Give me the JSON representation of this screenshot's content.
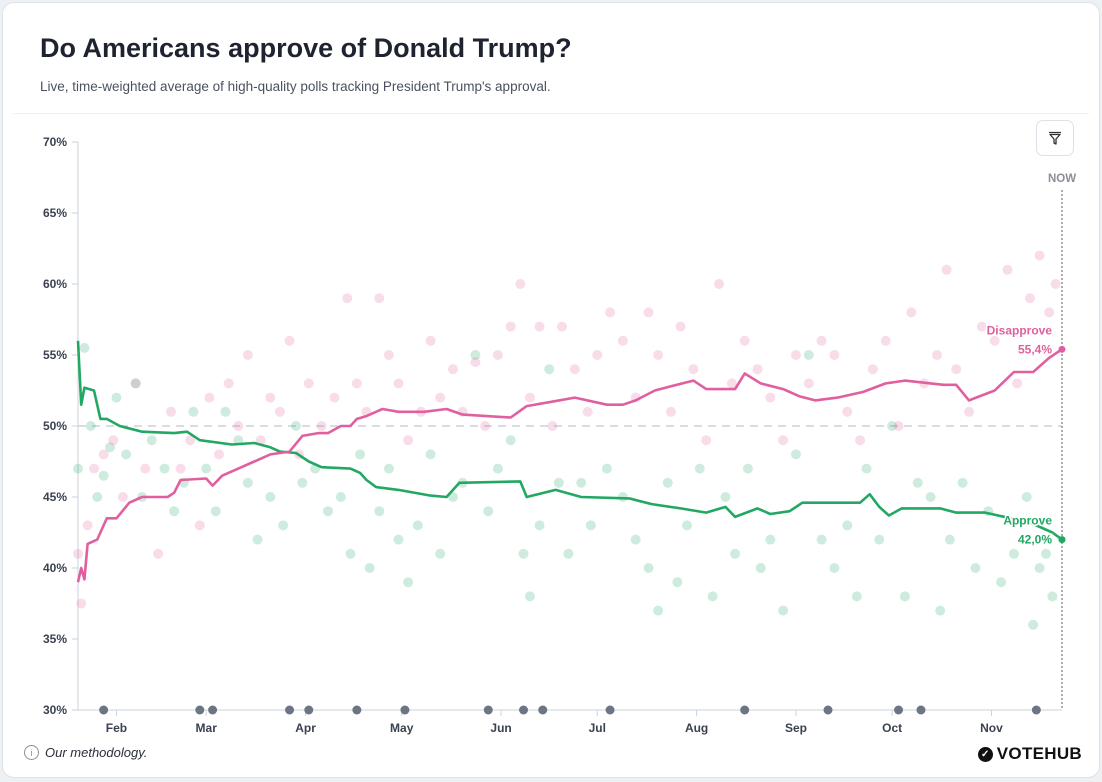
{
  "header": {
    "title": "Do Americans approve of Donald Trump?",
    "subtitle": "Live, time-weighted average of high-quality polls tracking President Trump's approval."
  },
  "footer": {
    "methodology": "Our methodology.",
    "logo": "VOTEHUB",
    "info_icon": "i"
  },
  "colors": {
    "approve": "#22a862",
    "disapprove": "#e0609f",
    "axis": "#c9d3de",
    "dots_event": "#6b7584"
  },
  "chart_data": {
    "type": "line",
    "title": "Do Americans approve of Donald Trump?",
    "x_unit": "days since Jan 20",
    "x_range": [
      0,
      307
    ],
    "ylim": [
      30,
      70
    ],
    "y_ticks": [
      30,
      35,
      40,
      45,
      50,
      55,
      60,
      65,
      70
    ],
    "y_tick_labels": [
      "30%",
      "35%",
      "40%",
      "45%",
      "50%",
      "55%",
      "60%",
      "65%",
      "70%"
    ],
    "x_ticks": [
      {
        "day": 12,
        "label": "Feb"
      },
      {
        "day": 40,
        "label": "Mar"
      },
      {
        "day": 71,
        "label": "Apr"
      },
      {
        "day": 101,
        "label": "May"
      },
      {
        "day": 132,
        "label": "Jun"
      },
      {
        "day": 162,
        "label": "Jul"
      },
      {
        "day": 193,
        "label": "Aug"
      },
      {
        "day": 224,
        "label": "Sep"
      },
      {
        "day": 254,
        "label": "Oct"
      },
      {
        "day": 285,
        "label": "Nov"
      }
    ],
    "reference_line": 50,
    "now_label": "NOW",
    "series": [
      {
        "name": "Approve",
        "label": "Approve",
        "end_label": "42,0%",
        "end_value": 42.0,
        "points": [
          [
            0,
            56
          ],
          [
            1,
            51.5
          ],
          [
            2,
            52.7
          ],
          [
            5,
            52.5
          ],
          [
            7,
            50.5
          ],
          [
            9,
            50.5
          ],
          [
            13,
            50
          ],
          [
            20,
            49.6
          ],
          [
            30,
            49.5
          ],
          [
            34,
            49.6
          ],
          [
            38,
            49
          ],
          [
            48,
            48.7
          ],
          [
            55,
            48.8
          ],
          [
            60,
            48.5
          ],
          [
            63,
            48.2
          ],
          [
            68,
            48.1
          ],
          [
            72,
            47.5
          ],
          [
            76,
            47.1
          ],
          [
            85,
            47
          ],
          [
            88,
            46.7
          ],
          [
            90,
            46.2
          ],
          [
            93,
            45.7
          ],
          [
            100,
            45.5
          ],
          [
            110,
            45.1
          ],
          [
            115,
            45
          ],
          [
            119,
            46
          ],
          [
            138,
            46.1
          ],
          [
            140,
            45
          ],
          [
            149,
            45.5
          ],
          [
            157,
            45
          ],
          [
            172,
            44.9
          ],
          [
            179,
            44.5
          ],
          [
            188,
            44.2
          ],
          [
            196,
            43.9
          ],
          [
            202,
            44.3
          ],
          [
            205,
            43.6
          ],
          [
            212,
            44.2
          ],
          [
            216,
            43.8
          ],
          [
            222,
            44
          ],
          [
            226,
            44.6
          ],
          [
            244,
            44.6
          ],
          [
            247,
            45.2
          ],
          [
            250,
            44.3
          ],
          [
            253,
            43.7
          ],
          [
            257,
            44.2
          ],
          [
            269,
            44.2
          ],
          [
            274,
            43.9
          ],
          [
            283,
            43.9
          ],
          [
            291,
            43.5
          ],
          [
            297,
            43.2
          ],
          [
            304,
            42.5
          ],
          [
            307,
            42
          ]
        ],
        "polls": [
          [
            0,
            47
          ],
          [
            2,
            55.5
          ],
          [
            4,
            50
          ],
          [
            6,
            45
          ],
          [
            8,
            46.5
          ],
          [
            10,
            48.5
          ],
          [
            12,
            52
          ],
          [
            15,
            48
          ],
          [
            18,
            53
          ],
          [
            20,
            45
          ],
          [
            23,
            49
          ],
          [
            27,
            47
          ],
          [
            30,
            44
          ],
          [
            33,
            46
          ],
          [
            36,
            51
          ],
          [
            40,
            47
          ],
          [
            43,
            44
          ],
          [
            46,
            51
          ],
          [
            50,
            49
          ],
          [
            53,
            46
          ],
          [
            56,
            42
          ],
          [
            60,
            45
          ],
          [
            64,
            43
          ],
          [
            68,
            50
          ],
          [
            70,
            46
          ],
          [
            74,
            47
          ],
          [
            78,
            44
          ],
          [
            82,
            45
          ],
          [
            85,
            41
          ],
          [
            88,
            48
          ],
          [
            91,
            40
          ],
          [
            94,
            44
          ],
          [
            97,
            47
          ],
          [
            100,
            42
          ],
          [
            103,
            39
          ],
          [
            106,
            43
          ],
          [
            110,
            48
          ],
          [
            113,
            41
          ],
          [
            117,
            45
          ],
          [
            120,
            46
          ],
          [
            124,
            55
          ],
          [
            128,
            44
          ],
          [
            131,
            47
          ],
          [
            135,
            49
          ],
          [
            139,
            41
          ],
          [
            141,
            38
          ],
          [
            144,
            43
          ],
          [
            147,
            54
          ],
          [
            150,
            46
          ],
          [
            153,
            41
          ],
          [
            157,
            46
          ],
          [
            160,
            43
          ],
          [
            165,
            47
          ],
          [
            170,
            45
          ],
          [
            174,
            42
          ],
          [
            178,
            40
          ],
          [
            181,
            37
          ],
          [
            184,
            46
          ],
          [
            187,
            39
          ],
          [
            190,
            43
          ],
          [
            194,
            47
          ],
          [
            198,
            38
          ],
          [
            202,
            45
          ],
          [
            205,
            41
          ],
          [
            209,
            47
          ],
          [
            213,
            40
          ],
          [
            216,
            42
          ],
          [
            220,
            37
          ],
          [
            224,
            48
          ],
          [
            228,
            55
          ],
          [
            232,
            42
          ],
          [
            236,
            40
          ],
          [
            240,
            43
          ],
          [
            243,
            38
          ],
          [
            246,
            47
          ],
          [
            250,
            42
          ],
          [
            254,
            50
          ],
          [
            258,
            38
          ],
          [
            262,
            46
          ],
          [
            266,
            45
          ],
          [
            269,
            37
          ],
          [
            272,
            42
          ],
          [
            276,
            46
          ],
          [
            280,
            40
          ],
          [
            284,
            44
          ],
          [
            288,
            39
          ],
          [
            292,
            41
          ],
          [
            296,
            45
          ],
          [
            298,
            36
          ],
          [
            300,
            40
          ],
          [
            302,
            41
          ],
          [
            304,
            38
          ]
        ]
      },
      {
        "name": "Disapprove",
        "label": "Disapprove",
        "end_label": "55,4%",
        "end_value": 55.4,
        "points": [
          [
            0,
            39
          ],
          [
            1,
            40
          ],
          [
            2,
            39.2
          ],
          [
            3,
            41.7
          ],
          [
            6,
            42
          ],
          [
            9,
            43.5
          ],
          [
            12,
            43.5
          ],
          [
            16,
            44.6
          ],
          [
            20,
            45
          ],
          [
            28,
            45
          ],
          [
            30,
            45.3
          ],
          [
            32,
            46.2
          ],
          [
            40,
            46.3
          ],
          [
            42,
            45.8
          ],
          [
            45,
            46.5
          ],
          [
            50,
            47
          ],
          [
            55,
            47.5
          ],
          [
            60,
            48
          ],
          [
            66,
            48.2
          ],
          [
            70,
            49.3
          ],
          [
            75,
            49.5
          ],
          [
            78,
            49.5
          ],
          [
            82,
            50
          ],
          [
            85,
            50
          ],
          [
            87,
            50.5
          ],
          [
            90,
            50.7
          ],
          [
            95,
            51.2
          ],
          [
            100,
            51
          ],
          [
            108,
            51
          ],
          [
            115,
            51.2
          ],
          [
            120,
            50.8
          ],
          [
            135,
            50.6
          ],
          [
            140,
            51.4
          ],
          [
            145,
            51.6
          ],
          [
            155,
            52
          ],
          [
            165,
            51.5
          ],
          [
            170,
            51.5
          ],
          [
            174,
            51.8
          ],
          [
            180,
            52.5
          ],
          [
            185,
            52.8
          ],
          [
            192,
            53.2
          ],
          [
            196,
            52.6
          ],
          [
            205,
            52.6
          ],
          [
            208,
            53.7
          ],
          [
            213,
            53
          ],
          [
            220,
            52.6
          ],
          [
            225,
            52.1
          ],
          [
            230,
            51.8
          ],
          [
            237,
            52
          ],
          [
            245,
            52.4
          ],
          [
            252,
            53
          ],
          [
            258,
            53.2
          ],
          [
            270,
            52.9
          ],
          [
            274,
            52.9
          ],
          [
            278,
            51.8
          ],
          [
            286,
            52.5
          ],
          [
            292,
            53.8
          ],
          [
            298,
            53.8
          ],
          [
            303,
            54.8
          ],
          [
            307,
            55.4
          ]
        ],
        "polls": [
          [
            0,
            41
          ],
          [
            1,
            37.5
          ],
          [
            3,
            43
          ],
          [
            5,
            47
          ],
          [
            8,
            48
          ],
          [
            11,
            49
          ],
          [
            14,
            45
          ],
          [
            18,
            53
          ],
          [
            21,
            47
          ],
          [
            25,
            41
          ],
          [
            29,
            51
          ],
          [
            32,
            47
          ],
          [
            35,
            49
          ],
          [
            38,
            43
          ],
          [
            41,
            52
          ],
          [
            44,
            48
          ],
          [
            47,
            53
          ],
          [
            50,
            50
          ],
          [
            53,
            55
          ],
          [
            57,
            49
          ],
          [
            60,
            52
          ],
          [
            63,
            51
          ],
          [
            66,
            56
          ],
          [
            69,
            48
          ],
          [
            72,
            53
          ],
          [
            76,
            50
          ],
          [
            80,
            52
          ],
          [
            84,
            59
          ],
          [
            87,
            53
          ],
          [
            90,
            51
          ],
          [
            94,
            59
          ],
          [
            97,
            55
          ],
          [
            100,
            53
          ],
          [
            103,
            49
          ],
          [
            107,
            51
          ],
          [
            110,
            56
          ],
          [
            113,
            52
          ],
          [
            117,
            54
          ],
          [
            120,
            51
          ],
          [
            124,
            54.5
          ],
          [
            127,
            50
          ],
          [
            131,
            55
          ],
          [
            135,
            57
          ],
          [
            138,
            60
          ],
          [
            141,
            52
          ],
          [
            144,
            57
          ],
          [
            148,
            50
          ],
          [
            151,
            57
          ],
          [
            155,
            54
          ],
          [
            159,
            51
          ],
          [
            162,
            55
          ],
          [
            166,
            58
          ],
          [
            170,
            56
          ],
          [
            174,
            52
          ],
          [
            178,
            58
          ],
          [
            181,
            55
          ],
          [
            185,
            51
          ],
          [
            188,
            57
          ],
          [
            192,
            54
          ],
          [
            196,
            49
          ],
          [
            200,
            60
          ],
          [
            204,
            53
          ],
          [
            208,
            56
          ],
          [
            212,
            54
          ],
          [
            216,
            52
          ],
          [
            220,
            49
          ],
          [
            224,
            55
          ],
          [
            228,
            53
          ],
          [
            232,
            56
          ],
          [
            236,
            55
          ],
          [
            240,
            51
          ],
          [
            244,
            49
          ],
          [
            248,
            54
          ],
          [
            252,
            56
          ],
          [
            256,
            50
          ],
          [
            260,
            58
          ],
          [
            264,
            53
          ],
          [
            268,
            55
          ],
          [
            271,
            61
          ],
          [
            274,
            54
          ],
          [
            278,
            51
          ],
          [
            282,
            57
          ],
          [
            286,
            56
          ],
          [
            290,
            61
          ],
          [
            293,
            53
          ],
          [
            297,
            59
          ],
          [
            300,
            62
          ],
          [
            303,
            58
          ],
          [
            305,
            60
          ]
        ]
      }
    ],
    "event_markers_days": [
      8,
      38,
      42,
      66,
      72,
      87,
      102,
      128,
      139,
      145,
      166,
      208,
      234,
      256,
      263,
      299
    ]
  }
}
